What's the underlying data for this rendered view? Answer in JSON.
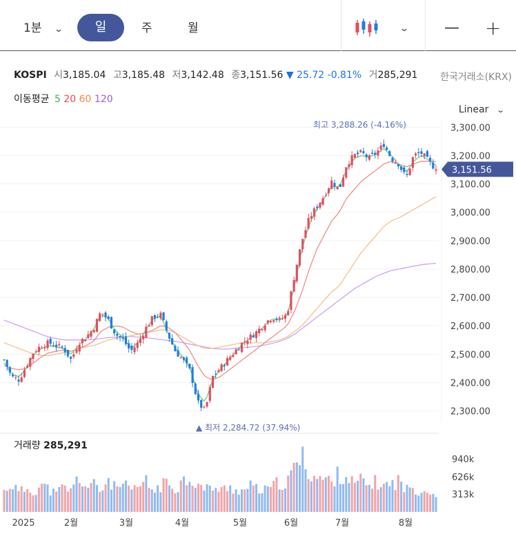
{
  "toolbar": {
    "interval": "1분",
    "tabs": [
      "일",
      "주",
      "월"
    ],
    "selected_tab": "일",
    "chart_style_icon": "candlestick-icon",
    "zoom_out": "—",
    "zoom_in": "+"
  },
  "info": {
    "symbol": "KOSPI",
    "open_label": "시",
    "open": "3,185.04",
    "high_label": "고",
    "high": "3,185.48",
    "low_label": "저",
    "low": "3,142.48",
    "close_label": "종",
    "close": "3,151.56",
    "change": "▼ 25.72",
    "change_pct": "-0.81%",
    "volume_label": "거",
    "volume": "285,291",
    "exchange": "한국거래소(KRX)"
  },
  "ma_legend": {
    "label": "이동평균",
    "periods": [
      "5",
      "20",
      "60",
      "120"
    ],
    "colors": [
      "#3cb44b",
      "#e6494a",
      "#f08c3c",
      "#9b5de5"
    ]
  },
  "scale_mode": "Linear",
  "colors": {
    "up": "#e04f5f",
    "down": "#1e7ee0",
    "current_badge": "#44579a"
  },
  "chart_data": {
    "type": "candlestick",
    "y_ticks": [
      "3,300.00",
      "3,200.00",
      "3,100.00",
      "3,000.00",
      "2,900.00",
      "2,800.00",
      "2,700.00",
      "2,600.00",
      "2,500.00",
      "2,400.00",
      "2,300.00"
    ],
    "ylim": [
      2260,
      3330
    ],
    "x_ticks": [
      "2025",
      "2월",
      "3월",
      "4월",
      "5월",
      "6월",
      "7월",
      "8월"
    ],
    "current_price": "3,151.56",
    "max_annotation": "최고 3,288.26 (-4.16%)",
    "min_annotation": "최저 2,284.72 (37.94%)",
    "volume_label": "거래량",
    "volume_value": "285,291",
    "volume_ticks": [
      "940k",
      "626k",
      "313k"
    ],
    "close_anchors": [
      2480,
      2420,
      2410,
      2460,
      2510,
      2530,
      2540,
      2530,
      2520,
      2480,
      2540,
      2560,
      2590,
      2650,
      2620,
      2570,
      2550,
      2510,
      2540,
      2590,
      2630,
      2640,
      2570,
      2510,
      2480,
      2440,
      2330,
      2300,
      2420,
      2450,
      2480,
      2510,
      2540,
      2560,
      2580,
      2610,
      2630,
      2620,
      2640,
      2780,
      2900,
      2980,
      3020,
      3060,
      3110,
      3080,
      3170,
      3200,
      3210,
      3190,
      3210,
      3240,
      3190,
      3170,
      3120,
      3200,
      3210,
      3180,
      3151.56
    ],
    "ma5_anchors": [
      2470,
      2430,
      2420,
      2450,
      2500,
      2520,
      2530,
      2525,
      2520,
      2500,
      2530,
      2555,
      2585,
      2640,
      2625,
      2580,
      2560,
      2520,
      2540,
      2585,
      2625,
      2635,
      2575,
      2520,
      2490,
      2450,
      2360,
      2330,
      2410,
      2445,
      2475,
      2505,
      2535,
      2555,
      2575,
      2600,
      2625,
      2620,
      2635,
      2740,
      2870,
      2960,
      3010,
      3050,
      3090,
      3090,
      3150,
      3190,
      3200,
      3195,
      3205,
      3225,
      3200,
      3170,
      3140,
      3180,
      3200,
      3185,
      3165
    ],
    "ma20_anchors": [
      2460,
      2450,
      2445,
      2450,
      2470,
      2490,
      2505,
      2510,
      2515,
      2510,
      2520,
      2530,
      2545,
      2580,
      2595,
      2600,
      2595,
      2580,
      2570,
      2575,
      2585,
      2600,
      2595,
      2575,
      2545,
      2510,
      2460,
      2420,
      2410,
      2420,
      2440,
      2460,
      2480,
      2500,
      2520,
      2540,
      2560,
      2580,
      2600,
      2650,
      2720,
      2800,
      2870,
      2920,
      2970,
      3000,
      3050,
      3080,
      3110,
      3130,
      3150,
      3170,
      3180,
      3170,
      3160,
      3170,
      3180,
      3180,
      3178
    ],
    "ma60_anchors": [
      2540,
      2530,
      2520,
      2510,
      2500,
      2495,
      2495,
      2500,
      2505,
      2510,
      2520,
      2525,
      2530,
      2540,
      2550,
      2555,
      2560,
      2565,
      2570,
      2575,
      2580,
      2585,
      2585,
      2575,
      2560,
      2545,
      2530,
      2520,
      2520,
      2525,
      2530,
      2535,
      2540,
      2540,
      2540,
      2540,
      2545,
      2550,
      2560,
      2580,
      2600,
      2630,
      2660,
      2690,
      2720,
      2740,
      2780,
      2820,
      2860,
      2890,
      2920,
      2950,
      2970,
      2980,
      2995,
      3010,
      3025,
      3040,
      3055
    ],
    "ma120_anchors": [
      2620,
      2610,
      2600,
      2590,
      2580,
      2570,
      2560,
      2555,
      2550,
      2550,
      2550,
      2550,
      2552,
      2555,
      2558,
      2560,
      2562,
      2562,
      2560,
      2558,
      2555,
      2552,
      2548,
      2545,
      2540,
      2535,
      2530,
      2525,
      2520,
      2518,
      2518,
      2520,
      2522,
      2525,
      2528,
      2532,
      2538,
      2545,
      2555,
      2570,
      2590,
      2610,
      2630,
      2650,
      2670,
      2690,
      2710,
      2730,
      2745,
      2760,
      2775,
      2785,
      2795,
      2800,
      2805,
      2810,
      2815,
      2818,
      2820
    ],
    "volume_profile": [
      0.3,
      0.42,
      0.28,
      0.35,
      0.3,
      0.4,
      0.33,
      0.26,
      0.38,
      0.3,
      0.52,
      0.36,
      0.4,
      0.3,
      0.48,
      0.33,
      0.4,
      0.3,
      0.36,
      0.45,
      0.3,
      0.38,
      0.42,
      0.35,
      0.46,
      0.5,
      0.4,
      0.32,
      0.38,
      0.3,
      0.36,
      0.34,
      0.3,
      0.38,
      0.33,
      0.31,
      0.36,
      0.44,
      0.4,
      0.66,
      0.8,
      0.58,
      0.5,
      0.48,
      0.44,
      0.56,
      0.52,
      0.4,
      0.46,
      0.38,
      0.44,
      0.38,
      0.4,
      0.46,
      0.32,
      0.36,
      0.3,
      0.34,
      0.22
    ],
    "n_candles": 150
  }
}
